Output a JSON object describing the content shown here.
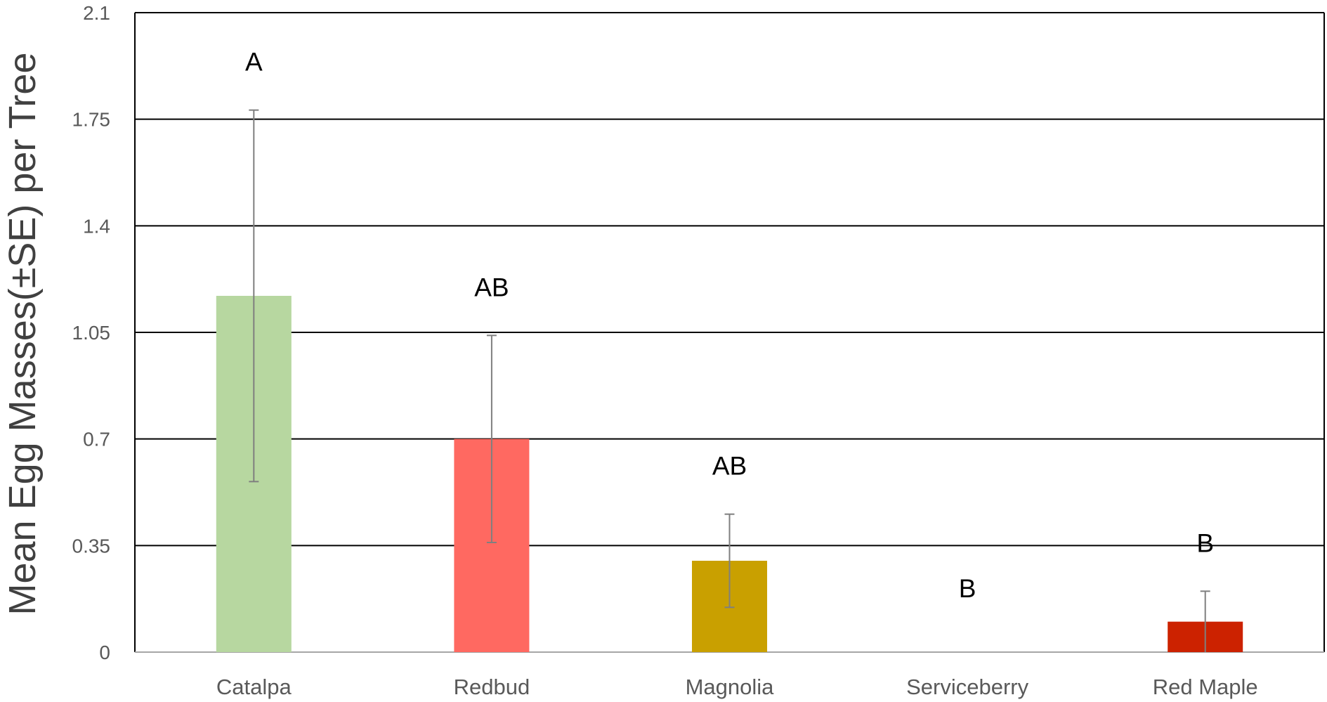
{
  "chart_data": {
    "type": "bar",
    "title": "",
    "xlabel": "",
    "ylabel": "Mean Egg Masses(±SE) per Tree",
    "ylim": [
      0,
      2.1
    ],
    "yticks": [
      "0",
      "0.35",
      "0.7",
      "1.05",
      "1.4",
      "1.75",
      "2.1"
    ],
    "grid": true,
    "categories": [
      "Catalpa",
      "Redbud",
      "Magnolia",
      "Serviceberry",
      "Red Maple"
    ],
    "values": [
      1.17,
      0.7,
      0.3,
      0,
      0.1
    ],
    "errors": [
      0.61,
      0.34,
      0.153,
      0,
      0.1
    ],
    "letters": [
      "A",
      "AB",
      "AB",
      "B",
      "B"
    ],
    "colors": [
      "#b7d7a0",
      "#ff6961",
      "#c9a000",
      "#ffffff",
      "#cc2200"
    ]
  }
}
